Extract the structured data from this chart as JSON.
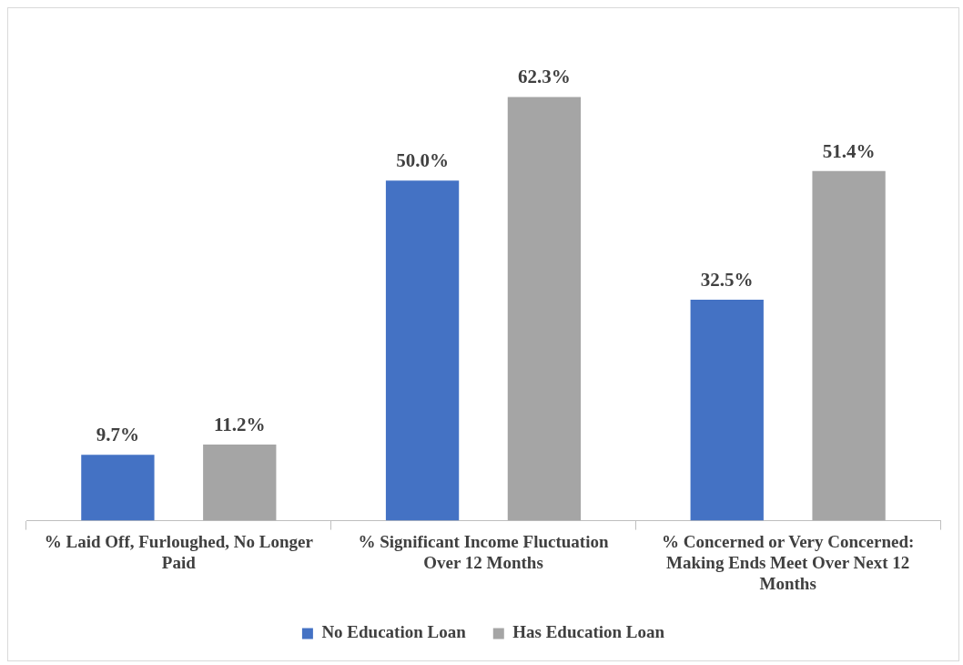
{
  "chart_data": {
    "type": "bar",
    "categories": [
      "% Laid Off, Furloughed, No Longer Paid",
      "% Significant Income Fluctuation Over 12 Months",
      "% Concerned or Very Concerned: Making Ends Meet Over Next 12 Months"
    ],
    "series": [
      {
        "name": "No Education Loan",
        "color": "#4472c4",
        "values": [
          9.7,
          50.0,
          32.5
        ],
        "value_labels": [
          "9.7%",
          "50.0%",
          "32.5%"
        ]
      },
      {
        "name": "Has Education Loan",
        "color": "#a5a5a5",
        "values": [
          11.2,
          62.3,
          51.4
        ],
        "value_labels": [
          "11.2%",
          "62.3%",
          "51.4%"
        ]
      }
    ],
    "legend": "bottom",
    "grid": false,
    "tick_labels": "x"
  }
}
